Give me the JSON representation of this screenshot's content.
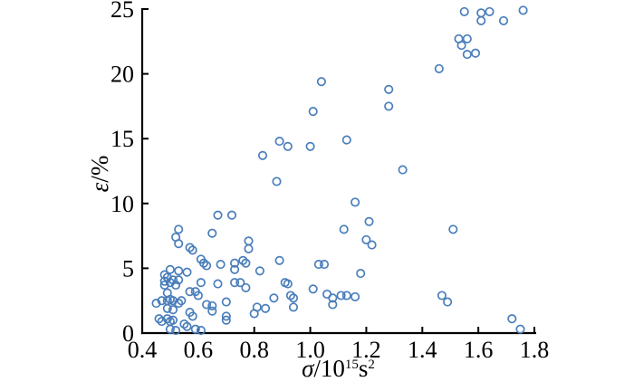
{
  "figure": {
    "background": "#ffffff",
    "axis_color": "#000000",
    "text_color": "#000000"
  },
  "chart_data": {
    "type": "scatter",
    "title": "",
    "xlabel": "σ/10^15 s^2",
    "xlabel_parts": {
      "sigma": "σ",
      "slash10": "/10",
      "exp15": "15",
      "s": "s",
      "exp2": "2"
    },
    "ylabel": "ε/%",
    "ylabel_parts": {
      "epsilon": "ε",
      "rest": "/%"
    },
    "xlim": [
      0.4,
      1.8
    ],
    "ylim": [
      0,
      25
    ],
    "x_ticks": [
      0.4,
      0.6,
      0.8,
      1.0,
      1.2,
      1.4,
      1.6,
      1.8
    ],
    "x_tick_labels": [
      "0.4",
      "0.6",
      "0.8",
      "1.0",
      "1.2",
      "1.4",
      "1.6",
      "1.8"
    ],
    "y_ticks": [
      0,
      5,
      10,
      15,
      20,
      25
    ],
    "y_tick_labels": [
      "0",
      "5",
      "10",
      "15",
      "20",
      "25"
    ],
    "grid": false,
    "legend": null,
    "marker": {
      "shape": "circle-open",
      "color": "#4a7ebb",
      "radius": 4.2,
      "stroke_width": 1.7
    },
    "points": [
      [
        0.53,
        8.0
      ],
      [
        0.52,
        7.4
      ],
      [
        0.53,
        6.9
      ],
      [
        0.57,
        6.6
      ],
      [
        0.58,
        6.4
      ],
      [
        0.5,
        4.9
      ],
      [
        0.53,
        4.8
      ],
      [
        0.56,
        4.7
      ],
      [
        0.48,
        4.5
      ],
      [
        0.49,
        4.3
      ],
      [
        0.48,
        4.0
      ],
      [
        0.51,
        4.1
      ],
      [
        0.53,
        4.1
      ],
      [
        0.48,
        3.7
      ],
      [
        0.5,
        3.9
      ],
      [
        0.52,
        3.7
      ],
      [
        0.49,
        3.1
      ],
      [
        0.57,
        3.2
      ],
      [
        0.45,
        2.3
      ],
      [
        0.47,
        2.5
      ],
      [
        0.49,
        2.5
      ],
      [
        0.5,
        2.6
      ],
      [
        0.51,
        2.5
      ],
      [
        0.53,
        2.3
      ],
      [
        0.54,
        2.5
      ],
      [
        0.49,
        1.9
      ],
      [
        0.51,
        1.8
      ],
      [
        0.57,
        1.6
      ],
      [
        0.58,
        1.3
      ],
      [
        0.46,
        1.1
      ],
      [
        0.47,
        0.9
      ],
      [
        0.49,
        1.1
      ],
      [
        0.5,
        0.9
      ],
      [
        0.51,
        1.0
      ],
      [
        0.55,
        0.7
      ],
      [
        0.56,
        0.5
      ],
      [
        0.5,
        0.3
      ],
      [
        0.52,
        0.2
      ],
      [
        0.65,
        7.7
      ],
      [
        0.61,
        5.7
      ],
      [
        0.62,
        5.4
      ],
      [
        0.63,
        5.2
      ],
      [
        0.68,
        5.3
      ],
      [
        0.73,
        5.4
      ],
      [
        0.76,
        5.6
      ],
      [
        0.77,
        5.4
      ],
      [
        0.73,
        4.9
      ],
      [
        0.61,
        3.9
      ],
      [
        0.59,
        3.2
      ],
      [
        0.67,
        3.8
      ],
      [
        0.73,
        3.9
      ],
      [
        0.75,
        3.9
      ],
      [
        0.6,
        2.9
      ],
      [
        0.63,
        2.2
      ],
      [
        0.65,
        2.1
      ],
      [
        0.65,
        1.7
      ],
      [
        0.7,
        2.4
      ],
      [
        0.7,
        1.3
      ],
      [
        0.7,
        1.0
      ],
      [
        0.59,
        0.3
      ],
      [
        0.61,
        0.2
      ],
      [
        0.67,
        9.1
      ],
      [
        0.72,
        9.1
      ],
      [
        0.78,
        7.1
      ],
      [
        0.78,
        6.5
      ],
      [
        0.77,
        3.5
      ],
      [
        0.8,
        1.5
      ],
      [
        0.81,
        2.0
      ],
      [
        0.84,
        1.9
      ],
      [
        0.82,
        4.8
      ],
      [
        0.89,
        5.6
      ],
      [
        0.87,
        2.7
      ],
      [
        0.93,
        2.9
      ],
      [
        0.94,
        2.7
      ],
      [
        0.94,
        2.0
      ],
      [
        0.91,
        3.9
      ],
      [
        0.92,
        3.8
      ],
      [
        0.83,
        13.7
      ],
      [
        0.89,
        14.8
      ],
      [
        0.92,
        14.4
      ],
      [
        0.88,
        11.7
      ],
      [
        1.0,
        14.4
      ],
      [
        1.13,
        14.9
      ],
      [
        1.04,
        19.4
      ],
      [
        1.01,
        17.1
      ],
      [
        1.03,
        5.3
      ],
      [
        1.05,
        5.3
      ],
      [
        1.01,
        3.4
      ],
      [
        1.06,
        3.0
      ],
      [
        1.08,
        2.7
      ],
      [
        1.11,
        2.9
      ],
      [
        1.13,
        2.9
      ],
      [
        1.16,
        2.8
      ],
      [
        1.08,
        2.2
      ],
      [
        1.12,
        8.0
      ],
      [
        1.18,
        4.6
      ],
      [
        1.2,
        7.2
      ],
      [
        1.22,
        6.8
      ],
      [
        1.16,
        10.1
      ],
      [
        1.21,
        8.6
      ],
      [
        1.28,
        18.8
      ],
      [
        1.28,
        17.5
      ],
      [
        1.33,
        12.6
      ],
      [
        1.46,
        20.4
      ],
      [
        1.47,
        2.9
      ],
      [
        1.49,
        2.4
      ],
      [
        1.51,
        8.0
      ],
      [
        1.53,
        22.7
      ],
      [
        1.56,
        22.7
      ],
      [
        1.54,
        22.2
      ],
      [
        1.56,
        21.5
      ],
      [
        1.59,
        21.6
      ],
      [
        1.55,
        24.8
      ],
      [
        1.61,
        24.7
      ],
      [
        1.64,
        24.8
      ],
      [
        1.61,
        24.1
      ],
      [
        1.69,
        24.1
      ],
      [
        1.76,
        24.9
      ],
      [
        1.72,
        1.1
      ],
      [
        1.75,
        0.3
      ]
    ]
  }
}
